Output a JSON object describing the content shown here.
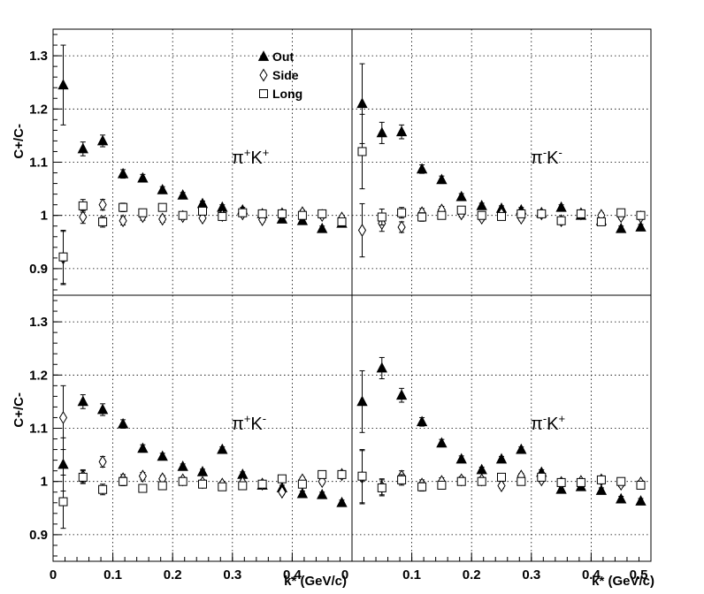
{
  "chart_data": {
    "type": "scatter",
    "layout": "2x2 panels, shared axes",
    "xlabel": "k* (GeV/c)",
    "ylabel": "C+/C-",
    "xlim": [
      0,
      0.5
    ],
    "ylim": [
      0.85,
      1.35
    ],
    "xticks_left": [
      "0",
      "0.1",
      "0.2",
      "0.3",
      "0.4",
      "0"
    ],
    "xticks_right": [
      "0.1",
      "0.2",
      "0.3",
      "0.4",
      "0.5"
    ],
    "yticks": [
      "0.9",
      "1",
      "1.1",
      "1.2",
      "1.3"
    ],
    "grid": true,
    "legend": {
      "placement": "inside top panel, upper center",
      "entries": [
        {
          "label": "Out",
          "marker": "filled-triangle"
        },
        {
          "label": "Side",
          "marker": "open-diamond"
        },
        {
          "label": "Long",
          "marker": "open-square"
        }
      ]
    },
    "panels": [
      {
        "id": "top-left",
        "label_parts": [
          [
            "π",
            "base"
          ],
          [
            "+",
            "sup"
          ],
          [
            "K",
            "base"
          ],
          [
            "+",
            "sup"
          ]
        ],
        "x": [
          0.017,
          0.05,
          0.083,
          0.117,
          0.15,
          0.183,
          0.217,
          0.25,
          0.283,
          0.317,
          0.35,
          0.383,
          0.417,
          0.45,
          0.483
        ],
        "series": [
          {
            "name": "Out",
            "values": [
              1.245,
              1.125,
              1.14,
              1.078,
              1.07,
              1.048,
              1.038,
              1.022,
              1.015,
              1.01,
              1.003,
              0.993,
              0.99,
              0.975,
              0.985
            ],
            "errors": [
              0.075,
              0.013,
              0.011,
              0.008,
              0.007,
              0.006,
              0.005,
              0.005,
              0.005,
              0.005,
              0.005,
              0.005,
              0.005,
              0.005,
              0.005
            ]
          },
          {
            "name": "Side",
            "values": [
              0.92,
              0.997,
              1.02,
              0.99,
              0.998,
              0.993,
              0.998,
              0.995,
              1.0,
              1.003,
              0.992,
              1.003,
              1.005,
              1.0,
              0.995
            ],
            "errors": [
              0.05,
              0.012,
              0.01,
              0.008,
              0.007,
              0.006,
              0.005,
              0.005,
              0.005,
              0.005,
              0.005,
              0.005,
              0.005,
              0.005,
              0.005
            ]
          },
          {
            "name": "Long",
            "values": [
              0.922,
              1.018,
              0.988,
              1.015,
              1.005,
              1.015,
              1.0,
              1.008,
              0.998,
              1.005,
              1.003,
              1.003,
              1.0,
              1.003,
              0.988
            ],
            "errors": [
              0.05,
              0.012,
              0.01,
              0.008,
              0.007,
              0.006,
              0.005,
              0.005,
              0.005,
              0.005,
              0.005,
              0.005,
              0.005,
              0.005,
              0.005
            ]
          }
        ]
      },
      {
        "id": "top-right",
        "label_parts": [
          [
            "π",
            "base"
          ],
          [
            "-",
            "sup"
          ],
          [
            "K",
            "base"
          ],
          [
            "-",
            "sup"
          ]
        ],
        "x": [
          0.017,
          0.05,
          0.083,
          0.117,
          0.15,
          0.183,
          0.217,
          0.25,
          0.283,
          0.317,
          0.35,
          0.383,
          0.417,
          0.45,
          0.483
        ],
        "series": [
          {
            "name": "Out",
            "values": [
              1.21,
              1.155,
              1.157,
              1.087,
              1.067,
              1.035,
              1.018,
              1.013,
              1.01,
              1.005,
              1.015,
              1.0,
              0.99,
              0.975,
              0.978
            ],
            "errors": [
              0.075,
              0.02,
              0.013,
              0.008,
              0.007,
              0.006,
              0.005,
              0.005,
              0.005,
              0.005,
              0.005,
              0.005,
              0.005,
              0.005,
              0.005
            ]
          },
          {
            "name": "Side",
            "values": [
              0.972,
              0.985,
              0.978,
              1.005,
              1.01,
              1.003,
              0.995,
              1.003,
              0.995,
              1.003,
              0.99,
              1.003,
              1.0,
              0.998,
              0.997
            ],
            "errors": [
              0.05,
              0.015,
              0.01,
              0.008,
              0.007,
              0.006,
              0.005,
              0.005,
              0.005,
              0.005,
              0.005,
              0.005,
              0.005,
              0.005,
              0.005
            ]
          },
          {
            "name": "Long",
            "values": [
              1.12,
              0.997,
              1.005,
              0.997,
              1.0,
              1.01,
              1.0,
              0.998,
              1.003,
              1.003,
              0.99,
              1.003,
              0.988,
              1.005,
              1.0
            ],
            "errors": [
              0.07,
              0.015,
              0.01,
              0.008,
              0.007,
              0.006,
              0.005,
              0.005,
              0.005,
              0.005,
              0.005,
              0.005,
              0.005,
              0.005,
              0.005
            ]
          }
        ]
      },
      {
        "id": "bottom-left",
        "label_parts": [
          [
            "π",
            "base"
          ],
          [
            "+",
            "sup"
          ],
          [
            "K",
            "base"
          ],
          [
            "-",
            "sup"
          ]
        ],
        "x": [
          0.017,
          0.05,
          0.083,
          0.117,
          0.15,
          0.183,
          0.217,
          0.25,
          0.283,
          0.317,
          0.35,
          0.383,
          0.417,
          0.45,
          0.483
        ],
        "series": [
          {
            "name": "Out",
            "values": [
              1.032,
              1.15,
              1.135,
              1.108,
              1.062,
              1.047,
              1.028,
              1.018,
              1.06,
              1.013,
              0.993,
              0.988,
              0.977,
              0.975,
              0.96
            ],
            "errors": [
              0.05,
              0.013,
              0.011,
              0.008,
              0.007,
              0.006,
              0.005,
              0.005,
              0.005,
              0.005,
              0.005,
              0.005,
              0.005,
              0.005,
              0.005
            ]
          },
          {
            "name": "Side",
            "values": [
              1.12,
              1.01,
              1.037,
              1.005,
              1.01,
              1.005,
              1.003,
              0.998,
              0.995,
              0.998,
              0.995,
              0.98,
              1.003,
              1.0,
              1.013
            ],
            "errors": [
              0.06,
              0.012,
              0.01,
              0.008,
              0.007,
              0.006,
              0.005,
              0.005,
              0.005,
              0.005,
              0.005,
              0.005,
              0.005,
              0.005,
              0.005
            ]
          },
          {
            "name": "Long",
            "values": [
              0.962,
              1.008,
              0.985,
              1.0,
              0.987,
              0.992,
              1.0,
              0.995,
              0.99,
              0.992,
              0.995,
              1.005,
              0.995,
              1.013,
              1.013
            ],
            "errors": [
              0.05,
              0.012,
              0.01,
              0.008,
              0.007,
              0.006,
              0.005,
              0.005,
              0.005,
              0.005,
              0.005,
              0.005,
              0.005,
              0.005,
              0.005
            ]
          }
        ]
      },
      {
        "id": "bottom-right",
        "label_parts": [
          [
            "π",
            "base"
          ],
          [
            "-",
            "sup"
          ],
          [
            "K",
            "base"
          ],
          [
            "+",
            "sup"
          ]
        ],
        "x": [
          0.017,
          0.05,
          0.083,
          0.117,
          0.15,
          0.183,
          0.217,
          0.25,
          0.283,
          0.317,
          0.35,
          0.383,
          0.417,
          0.45,
          0.483
        ],
        "series": [
          {
            "name": "Out",
            "values": [
              1.15,
              1.213,
              1.162,
              1.112,
              1.072,
              1.042,
              1.022,
              1.042,
              1.06,
              1.017,
              0.985,
              0.99,
              0.983,
              0.967,
              0.963
            ],
            "errors": [
              0.058,
              0.02,
              0.013,
              0.008,
              0.007,
              0.006,
              0.005,
              0.005,
              0.005,
              0.005,
              0.005,
              0.005,
              0.005,
              0.005,
              0.005
            ]
          },
          {
            "name": "Side",
            "values": [
              1.008,
              0.99,
              1.01,
              0.995,
              1.0,
              1.003,
              1.003,
              0.992,
              1.01,
              1.003,
              0.998,
              1.0,
              1.003,
              0.995,
              0.997
            ],
            "errors": [
              0.05,
              0.015,
              0.01,
              0.008,
              0.007,
              0.006,
              0.005,
              0.005,
              0.005,
              0.005,
              0.005,
              0.005,
              0.005,
              0.005,
              0.005
            ]
          },
          {
            "name": "Long",
            "values": [
              1.01,
              0.988,
              1.003,
              0.99,
              0.993,
              1.0,
              1.0,
              1.008,
              1.0,
              1.008,
              0.998,
              0.998,
              1.003,
              1.0,
              0.993
            ],
            "errors": [
              0.05,
              0.015,
              0.01,
              0.008,
              0.007,
              0.006,
              0.005,
              0.005,
              0.005,
              0.005,
              0.005,
              0.005,
              0.005,
              0.005,
              0.005
            ]
          }
        ]
      }
    ]
  }
}
